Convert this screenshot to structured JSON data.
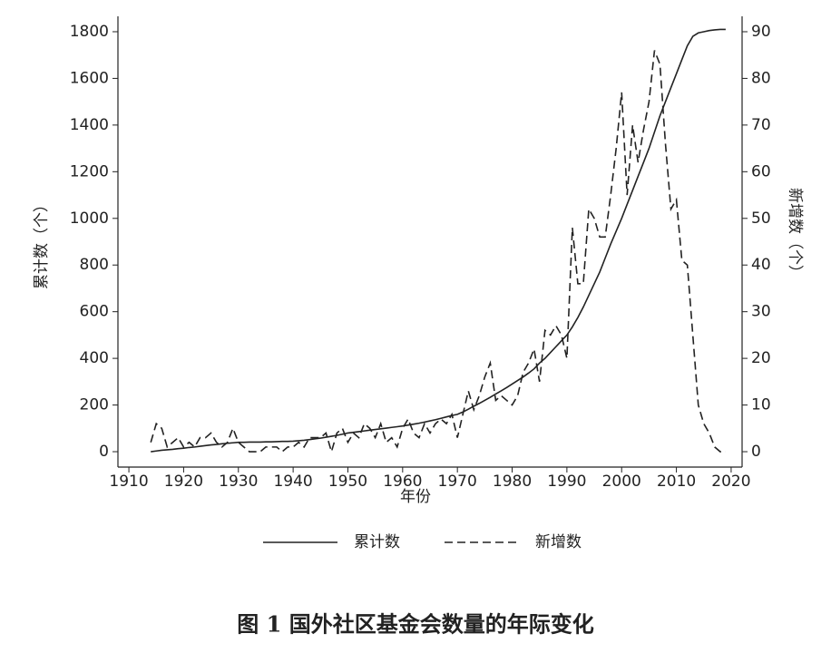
{
  "chart_data": {
    "type": "line",
    "title": "图 1  国外社区基金会数量的年际变化",
    "xlabel": "年份",
    "ylabel": "累计数（个）",
    "y2label": "新增数（个）",
    "x": [
      1914,
      1915,
      1916,
      1917,
      1918,
      1919,
      1920,
      1921,
      1922,
      1923,
      1924,
      1925,
      1926,
      1927,
      1928,
      1929,
      1930,
      1931,
      1932,
      1933,
      1934,
      1935,
      1936,
      1937,
      1938,
      1939,
      1940,
      1941,
      1942,
      1943,
      1944,
      1945,
      1946,
      1947,
      1948,
      1949,
      1950,
      1951,
      1952,
      1953,
      1954,
      1955,
      1956,
      1957,
      1958,
      1959,
      1960,
      1961,
      1962,
      1963,
      1964,
      1965,
      1966,
      1967,
      1968,
      1969,
      1970,
      1971,
      1972,
      1973,
      1974,
      1975,
      1976,
      1977,
      1978,
      1979,
      1980,
      1981,
      1982,
      1983,
      1984,
      1985,
      1986,
      1987,
      1988,
      1989,
      1990,
      1991,
      1992,
      1993,
      1994,
      1995,
      1996,
      1997,
      1998,
      1999,
      2000,
      2001,
      2002,
      2003,
      2004,
      2005,
      2006,
      2007,
      2008,
      2009,
      2010,
      2011,
      2012,
      2013,
      2014,
      2015,
      2016,
      2017,
      2018,
      2019
    ],
    "series": [
      {
        "name": "累计数",
        "color": "#222222",
        "dash": false,
        "values": [
          0,
          3,
          6,
          8,
          10,
          13,
          15,
          18,
          20,
          23,
          26,
          29,
          31,
          34,
          36,
          38,
          40,
          40,
          41,
          41,
          41,
          42,
          42,
          43,
          44,
          44,
          45,
          47,
          49,
          52,
          55,
          58,
          62,
          66,
          70,
          75,
          80,
          83,
          86,
          89,
          92,
          95,
          98,
          101,
          104,
          107,
          110,
          114,
          118,
          122,
          127,
          132,
          137,
          143,
          149,
          155,
          160,
          170,
          182,
          195,
          207,
          220,
          233,
          247,
          261,
          275,
          290,
          305,
          320,
          337,
          355,
          380,
          400,
          425,
          450,
          475,
          500,
          535,
          575,
          620,
          670,
          720,
          770,
          830,
          890,
          945,
          1000,
          1060,
          1120,
          1180,
          1240,
          1300,
          1370,
          1440,
          1500,
          1560,
          1620,
          1680,
          1740,
          1780,
          1795,
          1800,
          1805,
          1808,
          1810,
          1810
        ]
      },
      {
        "name": "新增数",
        "color": "#222222",
        "dash": true,
        "axis": "y2",
        "values": [
          2,
          6,
          5,
          1,
          2,
          3,
          1,
          2,
          1,
          3,
          3,
          4,
          2,
          1,
          2,
          5,
          2,
          1,
          0,
          0,
          0,
          1,
          1,
          1,
          0,
          1,
          1,
          2,
          1,
          3,
          3,
          3,
          4,
          0,
          4,
          5,
          2,
          4,
          3,
          6,
          5,
          3,
          6,
          2,
          3,
          1,
          5,
          7,
          4,
          3,
          6,
          4,
          6,
          7,
          6,
          8,
          3,
          8,
          13,
          9,
          12,
          16,
          19,
          11,
          12,
          11,
          10,
          12,
          17,
          19,
          22,
          15,
          26,
          25,
          27,
          25,
          20,
          48,
          36,
          36,
          52,
          50,
          46,
          46,
          55,
          65,
          77,
          55,
          70,
          62,
          69,
          75,
          86,
          83,
          66,
          52,
          54,
          41,
          40,
          25,
          10,
          6,
          4,
          1,
          0,
          0
        ]
      }
    ],
    "xlim": [
      1908,
      2022
    ],
    "xticks": [
      1910,
      1920,
      1930,
      1940,
      1950,
      1960,
      1970,
      1980,
      1990,
      2000,
      2010,
      2020
    ],
    "ylim": [
      -66,
      1866
    ],
    "yticks": [
      0,
      200,
      400,
      600,
      800,
      1000,
      1200,
      1400,
      1600,
      1800
    ],
    "y2lim": [
      -3.3,
      93.3
    ],
    "y2ticks": [
      0,
      10,
      20,
      30,
      40,
      50,
      60,
      70,
      80,
      90
    ],
    "legend": "bottom"
  }
}
